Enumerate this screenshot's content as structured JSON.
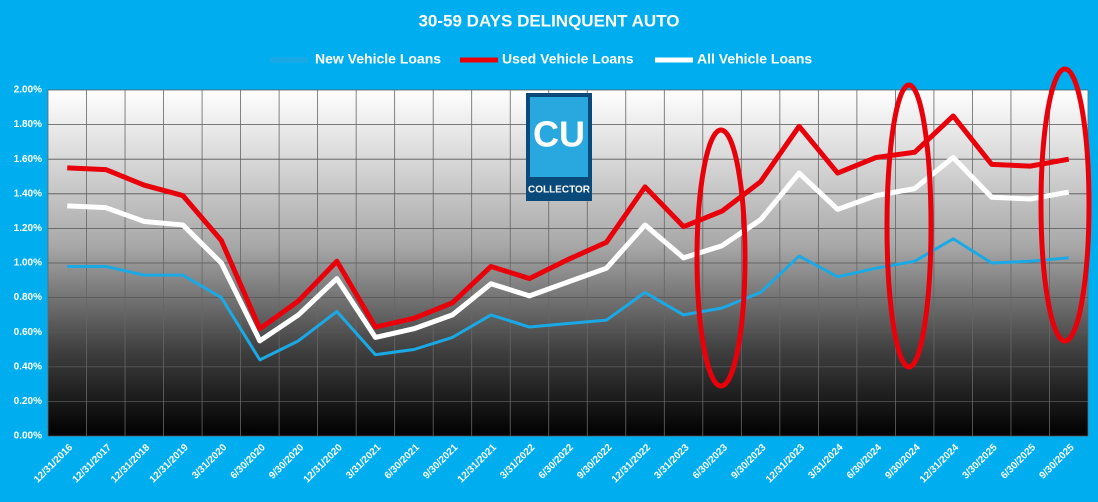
{
  "chart_data": {
    "type": "line",
    "title": "30-59 DAYS DELINQUENT AUTO",
    "categories": [
      "12/31/2016",
      "12/31/2017",
      "12/31/2018",
      "12/31/2019",
      "3/31/2020",
      "6/30/2020",
      "9/30/2020",
      "12/31/2020",
      "3/31/2021",
      "6/30/2021",
      "9/30/2021",
      "12/31/2021",
      "3/31/2022",
      "6/30/2022",
      "9/30/2022",
      "12/31/2022",
      "3/31/2023",
      "6/30/2023",
      "9/30/2023",
      "12/31/2023",
      "3/31/2024",
      "6/30/2024",
      "9/30/2024",
      "12/31/2024",
      "3/30/2025",
      "6/30/2025",
      "9/30/2025"
    ],
    "series": [
      {
        "name": "New Vehicle Loans",
        "color": "#1ba9e6",
        "values": [
          0.98,
          0.98,
          0.93,
          0.93,
          0.8,
          0.44,
          0.55,
          0.72,
          0.47,
          0.5,
          0.57,
          0.7,
          0.63,
          0.65,
          0.67,
          0.83,
          0.7,
          0.74,
          0.83,
          1.04,
          0.92,
          0.97,
          1.01,
          1.14,
          1.0,
          1.01,
          1.03
        ]
      },
      {
        "name": "Used Vehicle Loans",
        "color": "#e8000b",
        "values": [
          1.55,
          1.54,
          1.45,
          1.39,
          1.13,
          0.62,
          0.78,
          1.01,
          0.63,
          0.68,
          0.77,
          0.98,
          0.91,
          1.02,
          1.12,
          1.44,
          1.21,
          1.3,
          1.47,
          1.79,
          1.52,
          1.61,
          1.64,
          1.85,
          1.57,
          1.56,
          1.6
        ]
      },
      {
        "name": "All Vehicle Loans",
        "color": "#ffffff",
        "values": [
          1.33,
          1.32,
          1.24,
          1.22,
          1.0,
          0.55,
          0.7,
          0.91,
          0.57,
          0.62,
          0.7,
          0.88,
          0.81,
          0.89,
          0.97,
          1.22,
          1.03,
          1.1,
          1.25,
          1.52,
          1.31,
          1.39,
          1.43,
          1.61,
          1.38,
          1.37,
          1.41
        ]
      }
    ],
    "ylim": [
      0,
      2
    ],
    "yticks": [
      {
        "value": 0,
        "label": "0.00%"
      },
      {
        "value": 0.2,
        "label": "0.20%"
      },
      {
        "value": 0.4,
        "label": "0.40%"
      },
      {
        "value": 0.6,
        "label": "0.60%"
      },
      {
        "value": 0.8,
        "label": "0.80%"
      },
      {
        "value": 1,
        "label": "1.00%"
      },
      {
        "value": 1.2,
        "label": "1.20%"
      },
      {
        "value": 1.4,
        "label": "1.40%"
      },
      {
        "value": 1.6,
        "label": "1.60%"
      },
      {
        "value": 1.8,
        "label": "1.80%"
      },
      {
        "value": 2,
        "label": "2.00%"
      }
    ],
    "grid": true,
    "legend": "top"
  },
  "logo": {
    "mark": "CU",
    "name": "COLLECTOR"
  }
}
